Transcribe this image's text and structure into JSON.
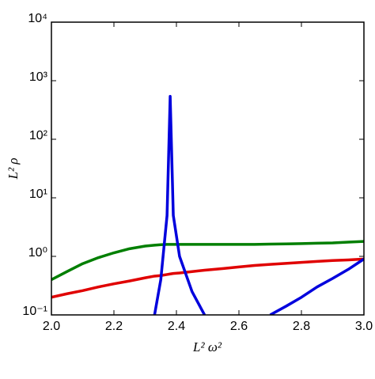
{
  "chart_data": {
    "type": "line",
    "xlabel": "L² ω²",
    "ylabel": "L² ρ",
    "x": [
      2.0,
      2.05,
      2.1,
      2.15,
      2.2,
      2.25,
      2.3,
      2.33,
      2.35,
      2.37,
      2.38,
      2.39,
      2.41,
      2.45,
      2.49,
      2.55,
      2.6,
      2.65,
      2.7,
      2.75,
      2.8,
      2.85,
      2.9,
      2.95,
      3.0
    ],
    "series": [
      {
        "color": "#007f00",
        "values": [
          0.4,
          0.55,
          0.75,
          0.95,
          1.15,
          1.35,
          1.5,
          1.55,
          1.58,
          1.6,
          1.6,
          1.6,
          1.6,
          1.6,
          1.6,
          1.6,
          1.6,
          1.6,
          1.62,
          1.63,
          1.65,
          1.68,
          1.7,
          1.75,
          1.8
        ]
      },
      {
        "color": "#e00000",
        "values": [
          0.2,
          0.23,
          0.26,
          0.3,
          0.34,
          0.38,
          0.43,
          0.46,
          0.47,
          0.49,
          0.5,
          0.51,
          0.52,
          0.55,
          0.58,
          0.62,
          0.66,
          0.7,
          0.73,
          0.76,
          0.79,
          0.82,
          0.85,
          0.87,
          0.9
        ]
      },
      {
        "color": "#0000dd",
        "values": [
          null,
          null,
          null,
          null,
          null,
          null,
          null,
          0.1,
          0.4,
          5,
          540,
          5,
          1,
          0.25,
          0.1,
          null,
          null,
          null,
          0.1,
          0.14,
          0.2,
          0.3,
          0.42,
          0.6,
          0.9
        ]
      }
    ],
    "xlim": [
      2.0,
      3.0
    ],
    "xticks": [
      {
        "value": 2.0,
        "label": "2.0"
      },
      2.2,
      2.4,
      2.6,
      2.8,
      {
        "value": 3.0,
        "label": "3.0"
      }
    ],
    "ylim": [
      0.1,
      10000
    ],
    "log_y": true,
    "yticks": [
      {
        "value": 0.1,
        "label": "10⁻¹"
      },
      {
        "value": 1,
        "label": "10⁰"
      },
      {
        "value": 10,
        "label": "10¹"
      },
      {
        "value": 100,
        "label": "10²"
      },
      {
        "value": 1000,
        "label": "10³"
      },
      {
        "value": 10000,
        "label": "10⁴"
      }
    ]
  }
}
